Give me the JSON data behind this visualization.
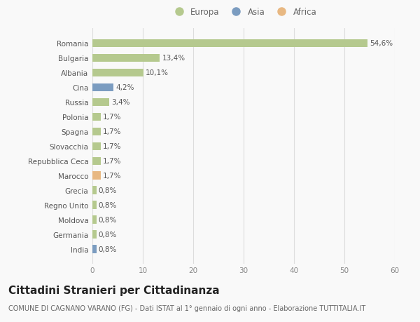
{
  "categories": [
    "Romania",
    "Bulgaria",
    "Albania",
    "Cina",
    "Russia",
    "Polonia",
    "Spagna",
    "Slovacchia",
    "Repubblica Ceca",
    "Marocco",
    "Grecia",
    "Regno Unito",
    "Moldova",
    "Germania",
    "India"
  ],
  "values": [
    54.6,
    13.4,
    10.1,
    4.2,
    3.4,
    1.7,
    1.7,
    1.7,
    1.7,
    1.7,
    0.8,
    0.8,
    0.8,
    0.8,
    0.8
  ],
  "labels": [
    "54,6%",
    "13,4%",
    "10,1%",
    "4,2%",
    "3,4%",
    "1,7%",
    "1,7%",
    "1,7%",
    "1,7%",
    "1,7%",
    "0,8%",
    "0,8%",
    "0,8%",
    "0,8%",
    "0,8%"
  ],
  "colors": [
    "#b5c98e",
    "#b5c98e",
    "#b5c98e",
    "#7b9cc0",
    "#b5c98e",
    "#b5c98e",
    "#b5c98e",
    "#b5c98e",
    "#b5c98e",
    "#e8b882",
    "#b5c98e",
    "#b5c98e",
    "#b5c98e",
    "#b5c98e",
    "#7b9cc0"
  ],
  "legend_labels": [
    "Europa",
    "Asia",
    "Africa"
  ],
  "legend_colors": [
    "#b5c98e",
    "#7b9cc0",
    "#e8b882"
  ],
  "xlim": [
    0,
    60
  ],
  "xticks": [
    0,
    10,
    20,
    30,
    40,
    50,
    60
  ],
  "title": "Cittadini Stranieri per Cittadinanza",
  "subtitle": "COMUNE DI CAGNANO VARANO (FG) - Dati ISTAT al 1° gennaio di ogni anno - Elaborazione TUTTITALIA.IT",
  "bg_color": "#f9f9f9",
  "bar_height": 0.55,
  "title_fontsize": 11,
  "subtitle_fontsize": 7,
  "label_fontsize": 7.5,
  "tick_fontsize": 7.5,
  "legend_fontsize": 8.5,
  "grid_color": "#dddddd"
}
